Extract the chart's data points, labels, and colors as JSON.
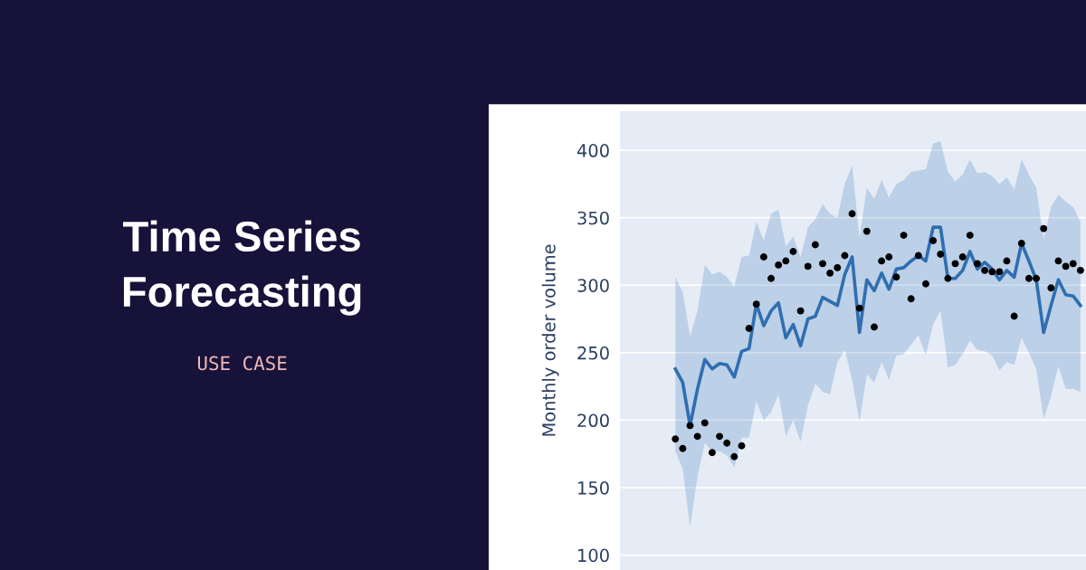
{
  "chart_data": {
    "type": "line",
    "title": "Time Series\nForecasting",
    "subtitle": "USE CASE",
    "ylabel": "Monthly order volume",
    "categories": [
      null,
      null,
      null,
      null,
      null,
      null,
      null,
      null,
      null,
      null,
      null,
      null,
      null,
      null,
      null,
      null,
      null,
      null,
      null,
      null,
      null,
      null,
      null,
      null,
      null,
      null,
      null,
      null,
      null,
      null,
      null,
      null,
      null,
      null,
      null,
      null,
      null,
      null,
      null,
      null,
      null,
      null,
      null,
      null,
      null,
      null,
      null,
      null,
      null,
      null,
      null,
      null,
      null,
      null,
      null,
      null
    ],
    "series": [
      {
        "color": "#2f6eb0",
        "values": [
          238,
          228,
          196,
          223,
          245,
          238,
          242,
          241,
          232,
          251,
          253,
          286,
          270,
          281,
          287,
          261,
          271,
          255,
          275,
          277,
          291,
          288,
          285,
          308,
          321,
          265,
          304,
          296,
          309,
          297,
          312,
          313,
          318,
          322,
          318,
          343,
          343,
          305,
          305,
          311,
          325,
          312,
          317,
          312,
          304,
          311,
          306,
          331,
          318,
          304,
          265,
          285,
          304,
          293,
          292,
          285
        ],
        "lower": [
          177,
          164,
          121,
          158,
          183,
          177,
          177,
          174,
          165,
          187,
          187,
          214,
          200,
          206,
          219,
          188,
          200,
          184,
          211,
          227,
          221,
          219,
          243,
          252,
          230,
          199,
          234,
          228,
          243,
          230,
          248,
          249,
          256,
          263,
          248,
          271,
          281,
          239,
          241,
          249,
          259,
          252,
          251,
          248,
          237,
          243,
          241,
          261,
          250,
          238,
          201,
          218,
          240,
          223,
          223,
          221
        ],
        "upper": [
          306,
          295,
          262,
          281,
          315,
          308,
          310,
          306,
          299,
          321,
          322,
          347,
          333,
          353,
          356,
          329,
          336,
          321,
          343,
          349,
          360,
          353,
          350,
          375,
          389,
          335,
          372,
          364,
          378,
          365,
          375,
          378,
          384,
          385,
          386,
          405,
          407,
          384,
          377,
          382,
          393,
          383,
          384,
          381,
          375,
          380,
          371,
          393,
          382,
          372,
          334,
          358,
          367,
          362,
          358,
          347
        ]
      },
      {
        "type": "scatter",
        "marker": "circle",
        "color": "#000000",
        "values": [
          186,
          179,
          196,
          188,
          198,
          176,
          188,
          183,
          173,
          181,
          268,
          286,
          321,
          305,
          315,
          318,
          325,
          281,
          314,
          330,
          316,
          309,
          313,
          322,
          353,
          283,
          340,
          269,
          318,
          321,
          306,
          337,
          290,
          322,
          301,
          333,
          323,
          305,
          316,
          321,
          337,
          316,
          311,
          310,
          310,
          318,
          277,
          331,
          305,
          305,
          342,
          298,
          318,
          314,
          316,
          311
        ]
      }
    ],
    "ylim": [
      89,
      429
    ],
    "yticks": [
      100,
      150,
      200,
      250,
      300,
      350,
      400
    ],
    "grid": "y"
  }
}
